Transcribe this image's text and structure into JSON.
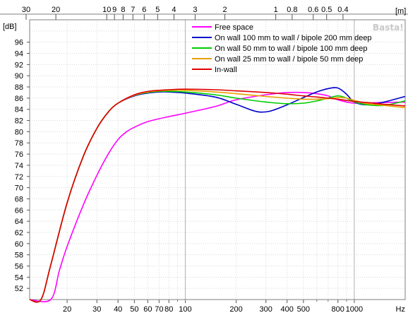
{
  "chart_data": {
    "type": "line",
    "title": "",
    "xlabel": "Hz",
    "ylabel": "[dB]",
    "x2label": "[m]",
    "x_scale": "log",
    "xlim": [
      12,
      2000
    ],
    "ylim": [
      50,
      100
    ],
    "grid": true,
    "legend_position": "top-right",
    "x_ticks": [
      {
        "value": 20,
        "label": "20"
      },
      {
        "value": 30,
        "label": "30"
      },
      {
        "value": 40,
        "label": "40"
      },
      {
        "value": 50,
        "label": "50"
      },
      {
        "value": 60,
        "label": "60"
      },
      {
        "value": 70,
        "label": "70"
      },
      {
        "value": 80,
        "label": "80"
      },
      {
        "value": 100,
        "label": "100"
      },
      {
        "value": 200,
        "label": "200"
      },
      {
        "value": 300,
        "label": "300"
      },
      {
        "value": 400,
        "label": "400"
      },
      {
        "value": 500,
        "label": "500"
      },
      {
        "value": 800,
        "label": "800"
      },
      {
        "value": 1000,
        "label": "1000"
      },
      {
        "value": 2000,
        "label": "Hz"
      }
    ],
    "x2_ticks": [
      {
        "value": 30,
        "label": "30"
      },
      {
        "value": 20,
        "label": "20"
      },
      {
        "value": 10,
        "label": "10"
      },
      {
        "value": 9,
        "label": "9"
      },
      {
        "value": 8,
        "label": "8"
      },
      {
        "value": 7,
        "label": "7"
      },
      {
        "value": 6,
        "label": "6"
      },
      {
        "value": 5,
        "label": "5"
      },
      {
        "value": 4,
        "label": "4"
      },
      {
        "value": 3,
        "label": "3"
      },
      {
        "value": 2,
        "label": "2"
      },
      {
        "value": 1,
        "label": "1"
      },
      {
        "value": 0.8,
        "label": "0.8"
      },
      {
        "value": 0.6,
        "label": "0.6"
      },
      {
        "value": 0.5,
        "label": "0.5"
      },
      {
        "value": 0.4,
        "label": "0.4"
      }
    ],
    "y_ticks": [
      52,
      54,
      56,
      58,
      60,
      62,
      64,
      66,
      68,
      70,
      72,
      74,
      76,
      78,
      80,
      82,
      84,
      86,
      88,
      90,
      92,
      94,
      96
    ],
    "series": [
      {
        "name": "Free space",
        "color": "#ff00ff",
        "x": [
          12,
          16,
          18,
          20,
          25,
          30,
          35,
          40,
          45,
          50,
          60,
          80,
          100,
          150,
          200,
          300,
          400,
          500,
          600,
          700,
          800,
          1000,
          1400,
          2000
        ],
        "y": [
          50,
          50,
          55.2,
          59.5,
          67,
          72.2,
          76,
          78.6,
          80,
          80.8,
          81.8,
          82.7,
          83.3,
          84.5,
          85.7,
          86.6,
          87,
          87,
          86.8,
          86.4,
          85.7,
          85.1,
          85.2,
          85.3
        ]
      },
      {
        "name": "On wall 100 mm to wall / bipole 200 mm deep",
        "color": "#0000cc",
        "x": [
          12,
          14,
          16,
          20,
          25,
          30,
          35,
          40,
          50,
          60,
          70,
          80,
          100,
          150,
          200,
          250,
          280,
          320,
          400,
          500,
          600,
          700,
          800,
          900,
          1000,
          1200,
          1500,
          2000
        ],
        "y": [
          50,
          50,
          56.2,
          67.3,
          75.7,
          80.6,
          83.5,
          85.1,
          86.4,
          86.9,
          87.1,
          87.1,
          86.9,
          86.2,
          84.9,
          83.8,
          83.5,
          83.7,
          84.8,
          86.1,
          87.1,
          87.7,
          87.8,
          86.7,
          85.3,
          84.8,
          85.3,
          86.3
        ]
      },
      {
        "name": "On wall 50 mm to wall / bipole 100 mm deep",
        "color": "#00cc00",
        "x": [
          12,
          14,
          16,
          20,
          25,
          30,
          35,
          40,
          50,
          60,
          70,
          80,
          100,
          150,
          200,
          300,
          400,
          500,
          600,
          700,
          800,
          900,
          1000,
          1200,
          1500,
          2000
        ],
        "y": [
          50,
          50,
          56.2,
          67.3,
          75.7,
          80.6,
          83.5,
          85.1,
          86.5,
          87,
          87.2,
          87.2,
          87.1,
          86.6,
          86,
          85.3,
          85,
          85.1,
          85.5,
          86,
          86.4,
          86,
          85.3,
          84.8,
          84.7,
          85.5
        ]
      },
      {
        "name": "On wall 25 mm to wall / bipole 50 mm deep",
        "color": "#e8a000",
        "x": [
          12,
          14,
          16,
          20,
          25,
          30,
          35,
          40,
          50,
          60,
          70,
          80,
          100,
          150,
          200,
          300,
          400,
          500,
          600,
          700,
          800,
          900,
          1000,
          1200,
          1500,
          2000
        ],
        "y": [
          50,
          50,
          56.2,
          67.3,
          75.7,
          80.6,
          83.5,
          85.1,
          86.5,
          87.1,
          87.3,
          87.4,
          87.4,
          87.1,
          86.8,
          86.3,
          86,
          85.8,
          85.8,
          85.9,
          86.1,
          86,
          85.6,
          85,
          84.7,
          84.3
        ]
      },
      {
        "name": "In-wall",
        "color": "#dd0000",
        "x": [
          12,
          14,
          16,
          20,
          25,
          30,
          35,
          40,
          50,
          60,
          70,
          80,
          100,
          150,
          200,
          300,
          400,
          500,
          600,
          700,
          800,
          900,
          1000,
          1200,
          1500,
          2000
        ],
        "y": [
          50,
          50,
          56.2,
          67.3,
          75.7,
          80.6,
          83.5,
          85.1,
          86.6,
          87.2,
          87.4,
          87.5,
          87.6,
          87.5,
          87.3,
          87,
          86.7,
          86.4,
          86.2,
          86,
          85.8,
          85.6,
          85.4,
          85.2,
          84.9,
          84.6
        ]
      }
    ]
  },
  "watermark": "Basta!"
}
